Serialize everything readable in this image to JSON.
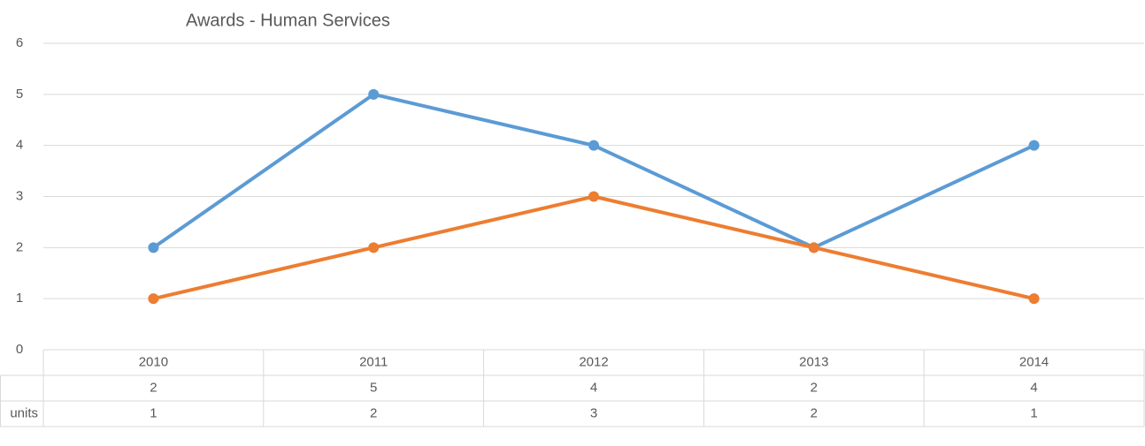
{
  "chart_data": {
    "type": "line",
    "title": "Awards - Human Services",
    "categories": [
      "2010",
      "2011",
      "2012",
      "2013",
      "2014"
    ],
    "series": [
      {
        "color": "#5b9bd5",
        "values": [
          2,
          5,
          4,
          2,
          4
        ]
      },
      {
        "name": "units",
        "color": "#ed7d31",
        "values": [
          1,
          2,
          3,
          2,
          1
        ]
      }
    ],
    "ylim": [
      0,
      6
    ],
    "yticks": [
      0,
      1,
      2,
      3,
      4,
      5,
      6
    ],
    "grid": true,
    "data_table": true
  }
}
